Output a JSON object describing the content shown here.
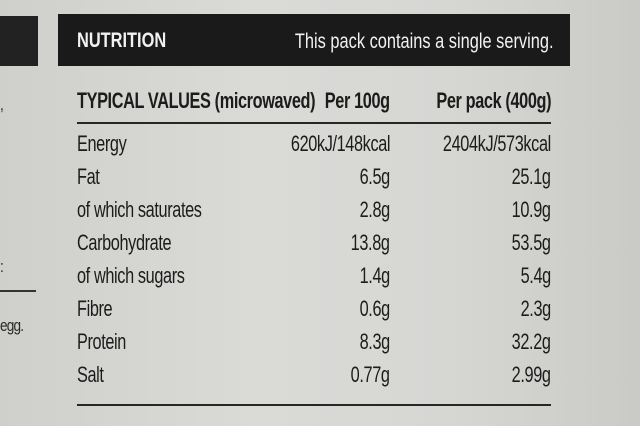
{
  "left_fragments": [
    ",",
    ":",
    "egg."
  ],
  "nutrition": {
    "title": "NUTRITION",
    "serving_note": "This pack contains a single serving.",
    "columns": {
      "label": "TYPICAL VALUES (microwaved)",
      "per_100g": "Per 100g",
      "per_pack": "Per pack (400g)"
    },
    "rows": [
      {
        "label": "Energy",
        "per_100g": "620kJ/148kcal",
        "per_pack": "2404kJ/573kcal"
      },
      {
        "label": "Fat",
        "per_100g": "6.5g",
        "per_pack": "25.1g"
      },
      {
        "label": "of which saturates",
        "per_100g": "2.8g",
        "per_pack": "10.9g"
      },
      {
        "label": "Carbohydrate",
        "per_100g": "13.8g",
        "per_pack": "53.5g"
      },
      {
        "label": "of which sugars",
        "per_100g": "1.4g",
        "per_pack": "5.4g"
      },
      {
        "label": "Fibre",
        "per_100g": "0.6g",
        "per_pack": "2.3g"
      },
      {
        "label": "Protein",
        "per_100g": "8.3g",
        "per_pack": "32.2g"
      },
      {
        "label": "Salt",
        "per_100g": "0.77g",
        "per_pack": "2.99g"
      }
    ]
  }
}
